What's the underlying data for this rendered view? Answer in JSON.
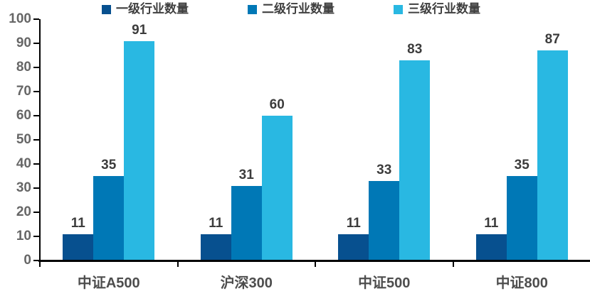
{
  "chart_data": {
    "type": "bar",
    "categories": [
      "中证A500",
      "沪深300",
      "中证500",
      "中证800"
    ],
    "series": [
      {
        "name": "一级行业数量",
        "color": "#07508f",
        "values": [
          11,
          11,
          11,
          11
        ]
      },
      {
        "name": "二级行业数量",
        "color": "#0078b6",
        "values": [
          35,
          31,
          33,
          35
        ]
      },
      {
        "name": "三级行业数量",
        "color": "#29b8e2",
        "values": [
          91,
          60,
          83,
          87
        ]
      }
    ],
    "ylim": [
      0,
      100
    ],
    "y_ticks": [
      0,
      10,
      20,
      30,
      40,
      50,
      60,
      70,
      80,
      90,
      100
    ],
    "grid": false,
    "legend_position": "top",
    "data_labels": true,
    "axis_color": "#000000"
  }
}
